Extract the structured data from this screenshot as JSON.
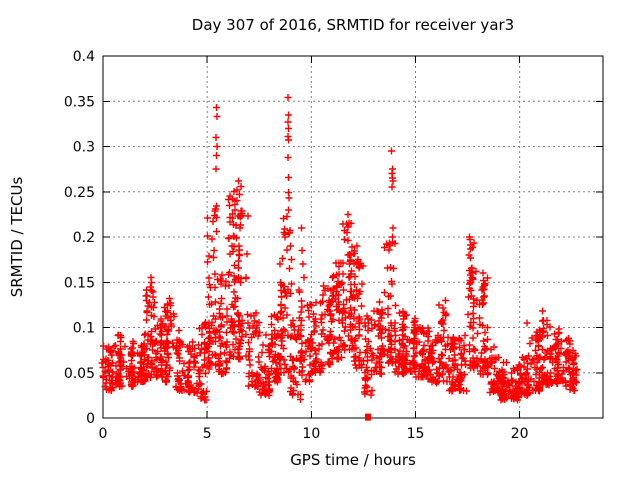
{
  "window": {
    "background": "#ffffff",
    "plot_background": "#ffffff"
  },
  "chart_data": {
    "type": "scatter",
    "title": "Day 307 of 2016, SRMTID for receiver yar3",
    "xlabel": "GPS time / hours",
    "ylabel": "SRMTID / TECUs",
    "xlim": [
      0,
      24
    ],
    "ylim": [
      0,
      0.4
    ],
    "xticks": [
      0,
      5,
      10,
      15,
      20
    ],
    "yticks": [
      0,
      0.05,
      0.1,
      0.15,
      0.2,
      0.25,
      0.3,
      0.35,
      0.4
    ],
    "xtick_labels": [
      "0",
      "5",
      "10",
      "15",
      "20"
    ],
    "ytick_labels": [
      "0",
      "0.05",
      "0.1",
      "0.15",
      "0.2",
      "0.25",
      "0.3",
      "0.35",
      "0.4"
    ],
    "grid": true,
    "grid_style": "dashed",
    "grid_color": "#7f7f7f",
    "border_color": "#000000",
    "legend": "none",
    "marker": {
      "glyph": "plus",
      "color": "#ff0000",
      "size": 7
    },
    "series_name": "SRMTID",
    "density_profile_format": [
      "t_start_hours",
      "t_end_hours",
      "point_count",
      "y_min_TECUs",
      "y_max_TECUs"
    ],
    "density_profile": [
      [
        0.0,
        0.5,
        42,
        0.03,
        0.08
      ],
      [
        0.5,
        1.0,
        44,
        0.035,
        0.092
      ],
      [
        1.0,
        1.5,
        40,
        0.035,
        0.085
      ],
      [
        1.5,
        2.0,
        44,
        0.04,
        0.095
      ],
      [
        2.0,
        2.5,
        48,
        0.045,
        0.148
      ],
      [
        2.5,
        3.0,
        44,
        0.045,
        0.112
      ],
      [
        3.0,
        3.5,
        44,
        0.04,
        0.128
      ],
      [
        3.5,
        4.0,
        40,
        0.03,
        0.1
      ],
      [
        4.0,
        4.5,
        40,
        0.028,
        0.09
      ],
      [
        4.5,
        5.0,
        44,
        0.02,
        0.112
      ],
      [
        5.0,
        5.5,
        55,
        0.05,
        0.242
      ],
      [
        5.5,
        6.0,
        46,
        0.048,
        0.16
      ],
      [
        6.0,
        6.5,
        58,
        0.065,
        0.252
      ],
      [
        6.5,
        7.0,
        55,
        0.065,
        0.24
      ],
      [
        7.0,
        7.5,
        40,
        0.035,
        0.12
      ],
      [
        7.5,
        8.0,
        40,
        0.025,
        0.095
      ],
      [
        8.0,
        8.5,
        44,
        0.04,
        0.12
      ],
      [
        8.5,
        9.0,
        50,
        0.05,
        0.225
      ],
      [
        9.0,
        9.5,
        44,
        0.02,
        0.15
      ],
      [
        9.5,
        10.0,
        42,
        0.04,
        0.13
      ],
      [
        10.0,
        10.5,
        44,
        0.05,
        0.128
      ],
      [
        10.5,
        11.0,
        44,
        0.058,
        0.15
      ],
      [
        11.0,
        11.5,
        48,
        0.065,
        0.18
      ],
      [
        11.5,
        12.0,
        54,
        0.075,
        0.22
      ],
      [
        12.0,
        12.5,
        50,
        0.055,
        0.185
      ],
      [
        12.5,
        13.0,
        40,
        0.025,
        0.118
      ],
      [
        13.0,
        13.5,
        40,
        0.048,
        0.13
      ],
      [
        13.5,
        14.0,
        48,
        0.06,
        0.2
      ],
      [
        14.0,
        14.5,
        42,
        0.048,
        0.12
      ],
      [
        14.5,
        15.0,
        44,
        0.05,
        0.115
      ],
      [
        15.0,
        15.5,
        44,
        0.045,
        0.1
      ],
      [
        15.5,
        16.0,
        40,
        0.04,
        0.1
      ],
      [
        16.0,
        16.5,
        40,
        0.038,
        0.125
      ],
      [
        16.5,
        17.0,
        40,
        0.03,
        0.09
      ],
      [
        17.0,
        17.5,
        40,
        0.03,
        0.092
      ],
      [
        17.5,
        18.0,
        48,
        0.055,
        0.195
      ],
      [
        18.0,
        18.5,
        44,
        0.048,
        0.158
      ],
      [
        18.5,
        19.0,
        40,
        0.028,
        0.08
      ],
      [
        19.0,
        19.5,
        44,
        0.02,
        0.062
      ],
      [
        19.5,
        20.0,
        44,
        0.02,
        0.06
      ],
      [
        20.0,
        20.5,
        44,
        0.025,
        0.072
      ],
      [
        20.5,
        21.0,
        44,
        0.03,
        0.1
      ],
      [
        21.0,
        21.5,
        44,
        0.035,
        0.11
      ],
      [
        21.5,
        22.0,
        44,
        0.038,
        0.1
      ],
      [
        22.0,
        22.4,
        34,
        0.035,
        0.09
      ],
      [
        22.4,
        22.75,
        28,
        0.03,
        0.075
      ]
    ],
    "outliers": [
      [
        2.28,
        0.145
      ],
      [
        2.3,
        0.155
      ],
      [
        2.32,
        0.15
      ],
      [
        3.2,
        0.132
      ],
      [
        3.24,
        0.127
      ],
      [
        5.42,
        0.275
      ],
      [
        5.44,
        0.29
      ],
      [
        5.45,
        0.343
      ],
      [
        5.47,
        0.333
      ],
      [
        5.43,
        0.31
      ],
      [
        5.48,
        0.3
      ],
      [
        6.42,
        0.252
      ],
      [
        6.5,
        0.262
      ],
      [
        6.56,
        0.247
      ],
      [
        6.62,
        0.256
      ],
      [
        8.88,
        0.354
      ],
      [
        8.9,
        0.335
      ],
      [
        8.88,
        0.327
      ],
      [
        8.9,
        0.32
      ],
      [
        8.89,
        0.311
      ],
      [
        8.91,
        0.307
      ],
      [
        8.88,
        0.288
      ],
      [
        8.9,
        0.266
      ],
      [
        8.9,
        0.249
      ],
      [
        8.92,
        0.243
      ],
      [
        8.9,
        0.23
      ],
      [
        8.95,
        0.205
      ],
      [
        9.0,
        0.19
      ],
      [
        9.05,
        0.175
      ],
      [
        9.52,
        0.21
      ],
      [
        9.55,
        0.185
      ],
      [
        9.6,
        0.17
      ],
      [
        9.65,
        0.155
      ],
      [
        11.72,
        0.205
      ],
      [
        11.75,
        0.225
      ],
      [
        11.8,
        0.215
      ],
      [
        12.2,
        0.19
      ],
      [
        12.25,
        0.175
      ],
      [
        13.85,
        0.295
      ],
      [
        13.88,
        0.27
      ],
      [
        13.9,
        0.275
      ],
      [
        13.9,
        0.265
      ],
      [
        13.92,
        0.262
      ],
      [
        13.87,
        0.255
      ],
      [
        13.93,
        0.21
      ],
      [
        13.9,
        0.2
      ],
      [
        13.95,
        0.165
      ],
      [
        13.88,
        0.148
      ],
      [
        16.45,
        0.13
      ],
      [
        17.58,
        0.18
      ],
      [
        17.6,
        0.2
      ],
      [
        17.62,
        0.197
      ],
      [
        17.63,
        0.177
      ],
      [
        17.6,
        0.163
      ],
      [
        17.65,
        0.158
      ],
      [
        17.62,
        0.152
      ],
      [
        17.6,
        0.148
      ],
      [
        17.66,
        0.141
      ],
      [
        18.25,
        0.16
      ],
      [
        18.27,
        0.152
      ],
      [
        18.24,
        0.145
      ],
      [
        18.3,
        0.135
      ],
      [
        20.35,
        0.105
      ],
      [
        21.1,
        0.118
      ]
    ],
    "special_points": [
      {
        "x": 12.72,
        "y": 0.001,
        "marker": "filled-square",
        "color": "#ff0000"
      }
    ]
  }
}
